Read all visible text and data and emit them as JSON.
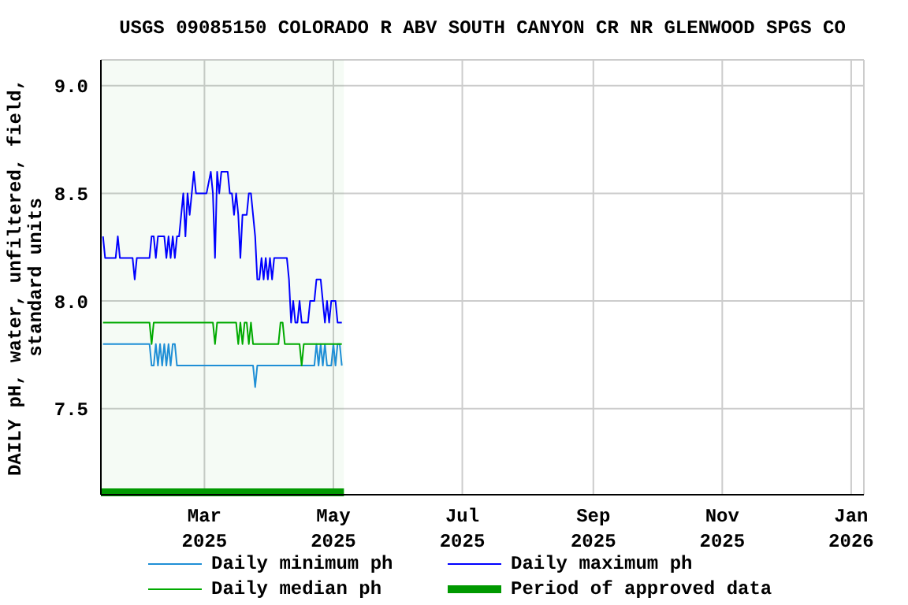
{
  "chart_data": {
    "type": "line",
    "title": "USGS 09085150 COLORADO R ABV SOUTH CANYON CR NR GLENWOOD SPGS CO",
    "ylabel": "DAILY pH, water, unfiltered, field,\nstandard units",
    "xlim": [
      "2025-01-11",
      "2026-01-07"
    ],
    "xticks": [
      {
        "value": "2025-03-01",
        "label": "Mar\n2025"
      },
      {
        "value": "2025-05-01",
        "label": "May\n2025"
      },
      {
        "value": "2025-07-01",
        "label": "Jul\n2025"
      },
      {
        "value": "2025-09-01",
        "label": "Sep\n2025"
      },
      {
        "value": "2025-11-01",
        "label": "Nov\n2025"
      },
      {
        "value": "2026-01-01",
        "label": "Jan\n2026"
      }
    ],
    "ylim": [
      7.1,
      9.12
    ],
    "yticks": [
      {
        "value": 7.5,
        "label": "7.5"
      },
      {
        "value": 8,
        "label": "8.0"
      },
      {
        "value": 8.5,
        "label": "8.5"
      },
      {
        "value": 9,
        "label": "9.0"
      }
    ],
    "grid": true,
    "legend": "bottom",
    "marker": "none",
    "line_style": "solid",
    "series": [
      {
        "name": "Daily minimum ph",
        "color": "#1f8fd6",
        "x": [
          "2025-01-12",
          "2025-02-03",
          "2025-02-04",
          "2025-02-05",
          "2025-02-06",
          "2025-02-07",
          "2025-02-08",
          "2025-02-09",
          "2025-02-10",
          "2025-02-11",
          "2025-02-12",
          "2025-02-13",
          "2025-02-14",
          "2025-02-15",
          "2025-02-16",
          "2025-02-17",
          "2025-03-24",
          "2025-03-25",
          "2025-03-26",
          "2025-04-22",
          "2025-04-23",
          "2025-04-24",
          "2025-04-25",
          "2025-04-26",
          "2025-04-27",
          "2025-04-28",
          "2025-04-30",
          "2025-05-01",
          "2025-05-02",
          "2025-05-03",
          "2025-05-04",
          "2025-05-05"
        ],
        "values": [
          7.8,
          7.8,
          7.7,
          7.7,
          7.8,
          7.7,
          7.8,
          7.7,
          7.8,
          7.7,
          7.8,
          7.7,
          7.8,
          7.8,
          7.7,
          7.7,
          7.7,
          7.6,
          7.7,
          7.7,
          7.8,
          7.7,
          7.8,
          7.7,
          7.8,
          7.7,
          7.7,
          7.8,
          7.7,
          7.8,
          7.8,
          7.7
        ]
      },
      {
        "name": "Daily maximum ph",
        "color": "#0000ff",
        "x": [
          "2025-01-12",
          "2025-01-13",
          "2025-01-18",
          "2025-01-19",
          "2025-01-20",
          "2025-01-26",
          "2025-01-27",
          "2025-01-28",
          "2025-02-03",
          "2025-02-04",
          "2025-02-05",
          "2025-02-06",
          "2025-02-07",
          "2025-02-10",
          "2025-02-11",
          "2025-02-12",
          "2025-02-13",
          "2025-02-14",
          "2025-02-15",
          "2025-02-16",
          "2025-02-17",
          "2025-02-18",
          "2025-02-19",
          "2025-02-20",
          "2025-02-21",
          "2025-02-22",
          "2025-02-23",
          "2025-02-24",
          "2025-02-25",
          "2025-02-28",
          "2025-03-01",
          "2025-03-02",
          "2025-03-04",
          "2025-03-05",
          "2025-03-06",
          "2025-03-07",
          "2025-03-08",
          "2025-03-09",
          "2025-03-10",
          "2025-03-12",
          "2025-03-13",
          "2025-03-14",
          "2025-03-15",
          "2025-03-16",
          "2025-03-17",
          "2025-03-18",
          "2025-03-19",
          "2025-03-21",
          "2025-03-22",
          "2025-03-23",
          "2025-03-24",
          "2025-03-25",
          "2025-03-26",
          "2025-03-27",
          "2025-03-28",
          "2025-03-29",
          "2025-03-30",
          "2025-03-31",
          "2025-04-01",
          "2025-04-02",
          "2025-04-03",
          "2025-04-09",
          "2025-04-10",
          "2025-04-11",
          "2025-04-12",
          "2025-04-13",
          "2025-04-14",
          "2025-04-15",
          "2025-04-16",
          "2025-04-19",
          "2025-04-20",
          "2025-04-22",
          "2025-04-23",
          "2025-04-25",
          "2025-04-26",
          "2025-04-27",
          "2025-04-28",
          "2025-04-29",
          "2025-04-30",
          "2025-05-02",
          "2025-05-03",
          "2025-05-05"
        ],
        "values": [
          8.3,
          8.2,
          8.2,
          8.3,
          8.2,
          8.2,
          8.1,
          8.2,
          8.2,
          8.3,
          8.3,
          8.2,
          8.3,
          8.3,
          8.2,
          8.3,
          8.2,
          8.3,
          8.2,
          8.3,
          8.3,
          8.4,
          8.5,
          8.3,
          8.5,
          8.4,
          8.5,
          8.6,
          8.5,
          8.5,
          8.5,
          8.5,
          8.6,
          8.5,
          8.2,
          8.6,
          8.5,
          8.6,
          8.6,
          8.6,
          8.5,
          8.5,
          8.4,
          8.5,
          8.4,
          8.2,
          8.4,
          8.4,
          8.5,
          8.5,
          8.4,
          8.3,
          8.1,
          8.1,
          8.2,
          8.1,
          8.2,
          8.1,
          8.2,
          8.1,
          8.2,
          8.2,
          8.1,
          7.9,
          8.0,
          7.9,
          7.9,
          8.0,
          7.9,
          7.9,
          8.0,
          8.0,
          8.1,
          8.1,
          8.0,
          7.9,
          8.0,
          7.9,
          8.0,
          8.0,
          7.9,
          7.9
        ]
      },
      {
        "name": "Daily median ph",
        "color": "#00aa00",
        "x": [
          "2025-01-12",
          "2025-02-03",
          "2025-02-04",
          "2025-02-05",
          "2025-03-05",
          "2025-03-06",
          "2025-03-07",
          "2025-03-16",
          "2025-03-17",
          "2025-03-18",
          "2025-03-19",
          "2025-03-20",
          "2025-03-21",
          "2025-03-22",
          "2025-03-23",
          "2025-03-24",
          "2025-04-05",
          "2025-04-06",
          "2025-04-07",
          "2025-04-08",
          "2025-04-15",
          "2025-04-16",
          "2025-04-17",
          "2025-05-05"
        ],
        "values": [
          7.9,
          7.9,
          7.8,
          7.9,
          7.9,
          7.8,
          7.9,
          7.9,
          7.8,
          7.9,
          7.8,
          7.9,
          7.9,
          7.8,
          7.9,
          7.8,
          7.8,
          7.9,
          7.9,
          7.8,
          7.8,
          7.7,
          7.8,
          7.8
        ]
      }
    ],
    "bands": [
      {
        "axis": "x",
        "from": "2025-01-11",
        "to": "2025-05-06",
        "label": "Period of approved data",
        "color": "#009900"
      }
    ]
  }
}
